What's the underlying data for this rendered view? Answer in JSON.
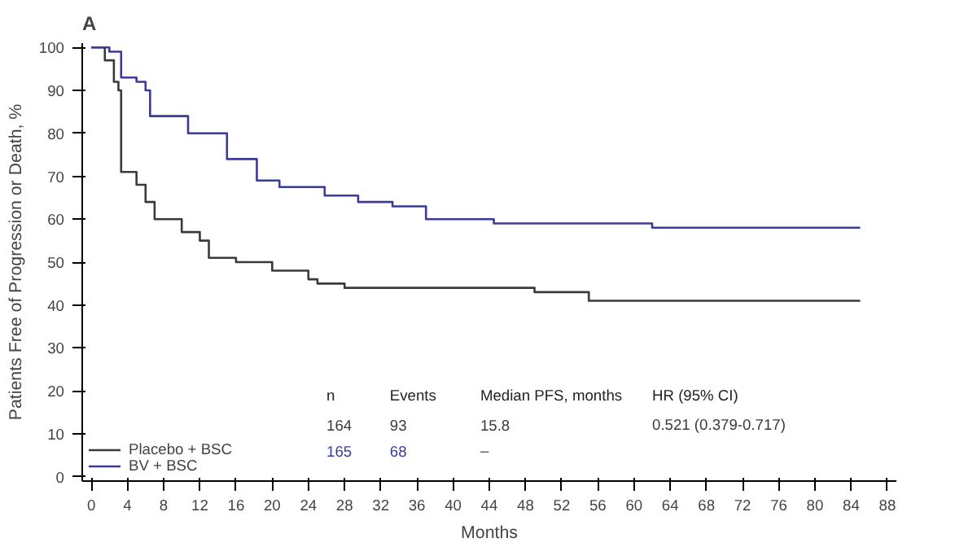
{
  "chart_data": {
    "type": "step",
    "title": "A",
    "xlabel": "Months",
    "ylabel": "Patients Free of Progression or Death, %",
    "xlim": [
      -1,
      89
    ],
    "xticks": [
      0,
      4,
      8,
      12,
      16,
      20,
      24,
      28,
      32,
      36,
      40,
      44,
      48,
      52,
      56,
      60,
      64,
      68,
      72,
      76,
      80,
      84,
      88
    ],
    "ylim": [
      -1,
      101
    ],
    "yticks": [
      0,
      10,
      20,
      30,
      40,
      50,
      60,
      70,
      80,
      90,
      100
    ],
    "grid": false,
    "legend": "bottom left",
    "series": [
      {
        "name": "Placebo + BSC",
        "color": "#3a3a3a",
        "x": [
          0,
          1.5,
          2.5,
          3,
          3.3,
          5,
          6,
          7,
          10,
          12,
          13,
          16,
          20,
          24,
          25,
          28,
          49,
          55,
          85
        ],
        "values": [
          100,
          97,
          92,
          90,
          71,
          68,
          64,
          60,
          57,
          55,
          51,
          50,
          48,
          46,
          45,
          44,
          43,
          41,
          41
        ]
      },
      {
        "name": "BV + BSC",
        "color": "#3b3b9a",
        "x": [
          0,
          2,
          3.3,
          5,
          6,
          6.5,
          8,
          10.7,
          15,
          18.3,
          20.8,
          25.8,
          29.5,
          33.3,
          37,
          44.5,
          62,
          85
        ],
        "values": [
          100,
          99,
          93,
          92,
          90,
          84,
          84,
          80,
          74,
          69,
          67.5,
          65.5,
          64,
          63,
          60,
          59,
          58,
          58
        ]
      }
    ],
    "annotations": [
      "n",
      "Events",
      "Median PFS, months",
      "HR (95% CI)",
      "164",
      "93",
      "15.8",
      "0.521 (0.379-0.717)",
      "165",
      "68",
      "–"
    ]
  }
}
